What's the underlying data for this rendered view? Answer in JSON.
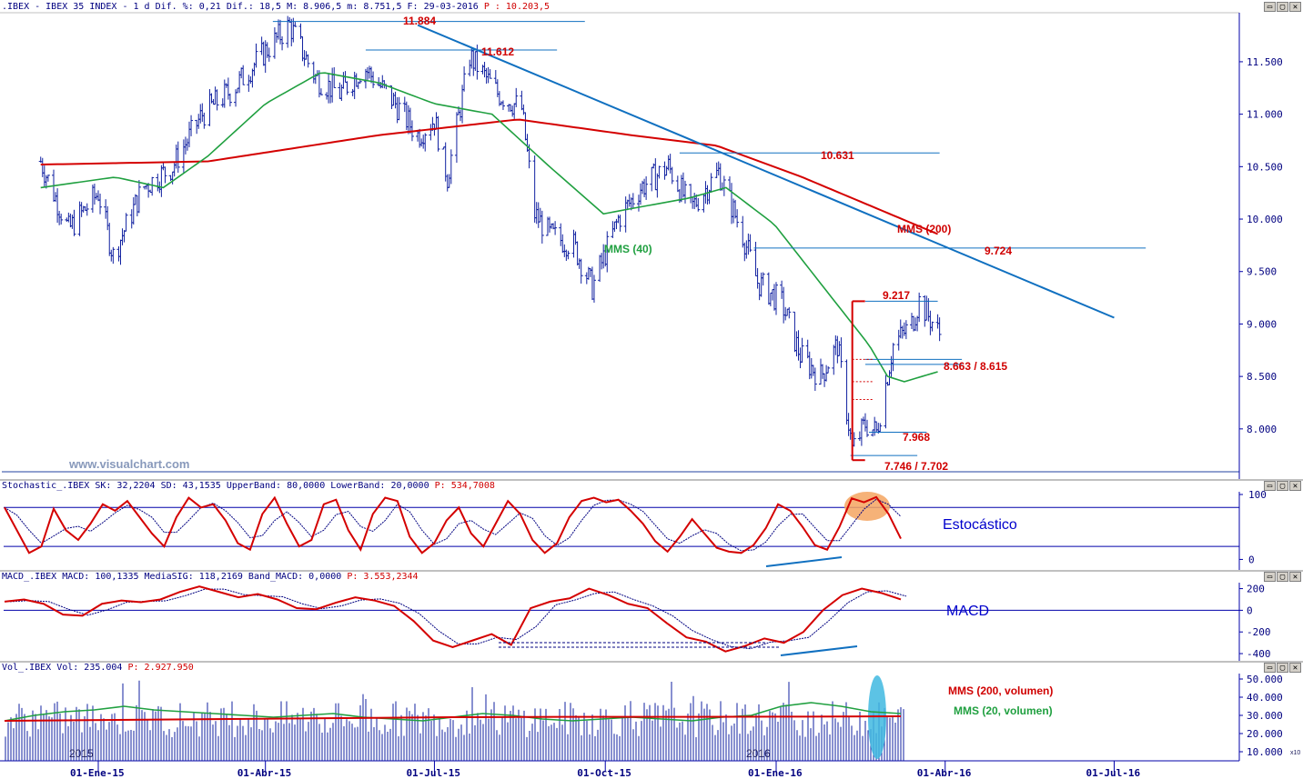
{
  "header": {
    "main": ".IBEX - IBEX 35 INDEX -  1 d Dif. %: 0,21 Dif.: 18,5 M: 8.906,5 m: 8.751,5 F: 29-03-2016",
    "main_p": "P : 10.203,5",
    "stoch": "Stochastic_.IBEX SK: 32,2204 SD: 43,1535 UpperBand: 80,0000 LowerBand: 20,0000",
    "stoch_p": "P: 534,7008",
    "macd": "MACD_.IBEX MACD: 100,1335 MediaSIG: 118,2169 Band_MACD: 0,0000",
    "macd_p": "P: 3.553,2344",
    "vol": "Vol_.IBEX Vol: 235.004",
    "vol_p": "P: 2.927.950"
  },
  "window_buttons": [
    "▭",
    "▢",
    "✕"
  ],
  "watermark": "www.visualchart.com",
  "annotations": {
    "l11884": "11.884",
    "l11612": "11.612",
    "l10631": "10.631",
    "mms200": "MMS (200)",
    "l9724": "9.724",
    "mms40": "MMS (40)",
    "l9217": "9.217",
    "l8663": "8.663 / 8.615",
    "l7968": "7.968",
    "l7746": "7.746 / 7.702",
    "estocastico": "Estocástico",
    "macd": "MACD",
    "mms200vol": "MMS (200, volumen)",
    "mms20vol": "MMS (20, volumen)",
    "y2015": "2015",
    "y2016": "2016",
    "x10": "x10"
  },
  "chart_data": [
    {
      "type": "ohlc-bar",
      "title": ".IBEX - IBEX 35 INDEX - 1 d",
      "ylim": [
        7600,
        11950
      ],
      "y_ticks": [
        "11.500",
        "11.000",
        "10.500",
        "10.000",
        "9.500",
        "9.000",
        "8.500",
        "8.000"
      ],
      "x_ticks": [
        "01-Ene-15",
        "01-Abr-15",
        "01-Jul-15",
        "01-Oct-15",
        "01-Ene-16",
        "01-Abr-16",
        "01-Jul-16"
      ],
      "close_anchors": [
        [
          "2014-12-01",
          10550
        ],
        [
          "2014-12-16",
          9900
        ],
        [
          "2015-01-01",
          10250
        ],
        [
          "2015-01-09",
          9650
        ],
        [
          "2015-01-25",
          10300
        ],
        [
          "2015-02-10",
          10500
        ],
        [
          "2015-02-26",
          11000
        ],
        [
          "2015-03-15",
          11250
        ],
        [
          "2015-04-01",
          11600
        ],
        [
          "2015-04-14",
          11850
        ],
        [
          "2015-04-28",
          11350
        ],
        [
          "2015-05-11",
          11200
        ],
        [
          "2015-05-24",
          11450
        ],
        [
          "2015-06-10",
          11100
        ],
        [
          "2015-06-22",
          10800
        ],
        [
          "2015-07-01",
          10950
        ],
        [
          "2015-07-08",
          10400
        ],
        [
          "2015-07-20",
          11550
        ],
        [
          "2015-08-04",
          11200
        ],
        [
          "2015-08-17",
          11050
        ],
        [
          "2015-08-24",
          10050
        ],
        [
          "2015-09-01",
          9850
        ],
        [
          "2015-09-14",
          9750
        ],
        [
          "2015-09-24",
          9350
        ],
        [
          "2015-10-08",
          10000
        ],
        [
          "2015-10-20",
          10300
        ],
        [
          "2015-11-04",
          10500
        ],
        [
          "2015-11-16",
          10100
        ],
        [
          "2015-12-01",
          10450
        ],
        [
          "2015-12-14",
          9850
        ],
        [
          "2015-12-22",
          9400
        ],
        [
          "2016-01-04",
          9200
        ],
        [
          "2016-01-14",
          8700
        ],
        [
          "2016-01-25",
          8500
        ],
        [
          "2016-02-03",
          8800
        ],
        [
          "2016-02-11",
          7800
        ],
        [
          "2016-02-18",
          8050
        ],
        [
          "2016-02-24",
          7968
        ],
        [
          "2016-03-04",
          8800
        ],
        [
          "2016-03-14",
          9000
        ],
        [
          "2016-03-18",
          9217
        ],
        [
          "2016-03-29",
          8906
        ]
      ],
      "mms_40": [
        [
          "2014-12-01",
          10300
        ],
        [
          "2015-01-10",
          10400
        ],
        [
          "2015-02-05",
          10300
        ],
        [
          "2015-03-01",
          10600
        ],
        [
          "2015-04-01",
          11100
        ],
        [
          "2015-05-01",
          11400
        ],
        [
          "2015-06-01",
          11300
        ],
        [
          "2015-07-01",
          11100
        ],
        [
          "2015-08-01",
          11000
        ],
        [
          "2015-09-01",
          10500
        ],
        [
          "2015-09-30",
          10050
        ],
        [
          "2015-10-15",
          10100
        ],
        [
          "2015-11-15",
          10200
        ],
        [
          "2015-12-05",
          10300
        ],
        [
          "2015-12-31",
          9950
        ],
        [
          "2016-01-31",
          9250
        ],
        [
          "2016-02-20",
          8800
        ],
        [
          "2016-03-01",
          8500
        ],
        [
          "2016-03-10",
          8450
        ],
        [
          "2016-03-29",
          8550
        ]
      ],
      "mms_200": [
        [
          "2014-12-01",
          10520
        ],
        [
          "2015-03-01",
          10550
        ],
        [
          "2015-06-01",
          10800
        ],
        [
          "2015-08-15",
          10950
        ],
        [
          "2015-10-15",
          10800
        ],
        [
          "2015-11-30",
          10700
        ],
        [
          "2016-01-15",
          10400
        ],
        [
          "2016-03-29",
          9850
        ]
      ],
      "levels": [
        11884,
        11612,
        10631,
        9724,
        9217,
        8663,
        8615,
        7968,
        7746,
        7702
      ],
      "trendline": [
        [
          "2015-06-22",
          11850
        ],
        [
          "2016-07-01",
          9060
        ]
      ]
    },
    {
      "type": "line",
      "title": "Stochastic_.IBEX",
      "series": [
        {
          "name": "SK",
          "last": 32.2204
        },
        {
          "name": "SD",
          "last": 43.1535
        }
      ],
      "bands": [
        80,
        20
      ],
      "ylim": [
        -5,
        100
      ],
      "y_ticks": [
        "100",
        "0"
      ],
      "sk_values": [
        80,
        45,
        10,
        20,
        78,
        45,
        30,
        55,
        85,
        75,
        90,
        65,
        40,
        20,
        65,
        95,
        80,
        85,
        60,
        25,
        15,
        70,
        95,
        55,
        20,
        30,
        85,
        92,
        45,
        15,
        70,
        95,
        90,
        35,
        10,
        25,
        60,
        80,
        40,
        20,
        55,
        90,
        70,
        30,
        10,
        25,
        65,
        90,
        95,
        88,
        92,
        75,
        55,
        28,
        12,
        35,
        62,
        40,
        18,
        12,
        10,
        22,
        48,
        85,
        75,
        50,
        22,
        15,
        50,
        94,
        88,
        96,
        70,
        32
      ]
    },
    {
      "type": "line",
      "title": "MACD_.IBEX",
      "series": [
        {
          "name": "MACD",
          "last": 100.1335
        },
        {
          "name": "MediaSIG",
          "last": 118.2169
        }
      ],
      "ylim": [
        -450,
        230
      ],
      "y_ticks": [
        "200",
        "0",
        "-200",
        "-400"
      ],
      "macd_values": [
        80,
        100,
        60,
        -40,
        -50,
        60,
        90,
        75,
        100,
        170,
        220,
        170,
        120,
        150,
        100,
        20,
        10,
        70,
        120,
        90,
        40,
        -100,
        -280,
        -340,
        -280,
        -220,
        -320,
        20,
        80,
        110,
        200,
        140,
        60,
        20,
        -120,
        -250,
        -290,
        -380,
        -330,
        -260,
        -300,
        -200,
        0,
        140,
        200,
        160,
        100
      ]
    },
    {
      "type": "bar",
      "title": "Vol_.IBEX",
      "series": [
        {
          "name": "Vol",
          "last": 235004
        },
        {
          "name": "MMS (20, volumen)"
        },
        {
          "name": "MMS (200, volumen)"
        }
      ],
      "ylim": [
        5,
        52
      ],
      "y_ticks": [
        "50.000",
        "40.000",
        "30.000",
        "20.000",
        "10.000"
      ],
      "y_multiplier": "x10",
      "mms20_values": [
        27,
        30,
        32,
        33,
        35,
        33,
        32,
        31,
        30,
        29,
        30,
        31,
        29,
        28,
        27,
        29,
        31,
        30,
        28,
        27,
        28,
        29,
        28,
        27,
        29,
        30,
        35,
        37,
        35,
        32,
        31
      ],
      "mms200_values": [
        27,
        27.5,
        28,
        28.5,
        29,
        29.2,
        29.2,
        29.3,
        29.5
      ]
    }
  ]
}
